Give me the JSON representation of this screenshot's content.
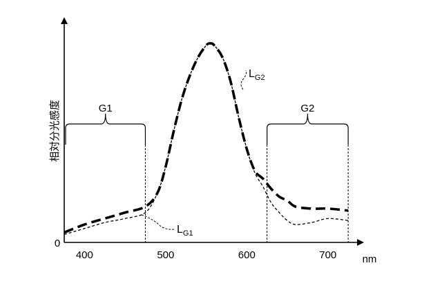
{
  "chart_data": {
    "type": "line",
    "title": "",
    "xlabel": "nm",
    "ylabel": "相対分光感度",
    "xlim": [
      375,
      730
    ],
    "ylim": [
      0,
      1
    ],
    "x_ticks": [
      400,
      500,
      600,
      700
    ],
    "y_ticks": [
      0
    ],
    "x_tick_labels": [
      "400",
      "500",
      "600",
      "700"
    ],
    "y_tick_labels": [
      "0"
    ],
    "grid": false,
    "series": [
      {
        "name": "LG2",
        "label_main": "L",
        "label_sub": "G2",
        "style": "dashed-thick",
        "x": [
          375,
          400,
          425,
          450,
          475,
          490,
          500,
          510,
          520,
          530,
          540,
          550,
          555,
          560,
          570,
          580,
          590,
          600,
          610,
          620,
          630,
          640,
          650,
          660,
          680,
          700,
          725
        ],
        "y": [
          0.05,
          0.09,
          0.12,
          0.15,
          0.18,
          0.25,
          0.38,
          0.56,
          0.72,
          0.84,
          0.93,
          0.99,
          1.0,
          0.99,
          0.93,
          0.81,
          0.63,
          0.47,
          0.36,
          0.32,
          0.27,
          0.23,
          0.21,
          0.18,
          0.17,
          0.17,
          0.16
        ]
      },
      {
        "name": "LG1",
        "label_main": "L",
        "label_sub": "G1",
        "style": "dashed-thin",
        "x": [
          375,
          400,
          425,
          450,
          475,
          490,
          500,
          510,
          520,
          530,
          540,
          550,
          555,
          560,
          570,
          580,
          590,
          600,
          610,
          620,
          630,
          640,
          650,
          660,
          680,
          700,
          725
        ],
        "y": [
          0.04,
          0.07,
          0.1,
          0.12,
          0.15,
          0.25,
          0.38,
          0.56,
          0.72,
          0.84,
          0.93,
          0.99,
          1.0,
          0.99,
          0.93,
          0.81,
          0.63,
          0.47,
          0.35,
          0.28,
          0.2,
          0.15,
          0.11,
          0.09,
          0.1,
          0.12,
          0.11
        ]
      }
    ],
    "regions": [
      {
        "label": "G1",
        "x_start": 375,
        "x_end": 475
      },
      {
        "label": "G2",
        "x_start": 625,
        "x_end": 725
      }
    ]
  }
}
